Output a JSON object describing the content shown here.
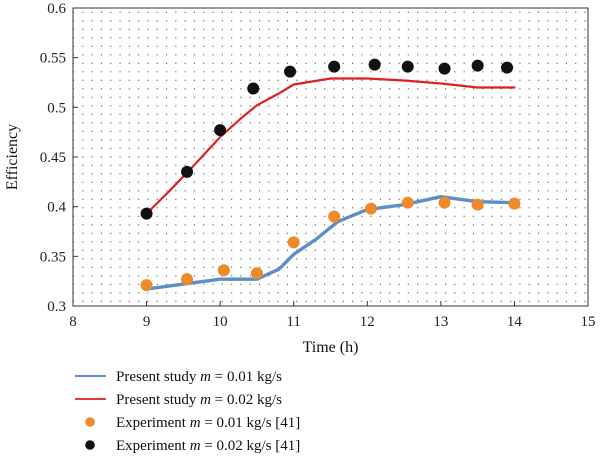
{
  "chart_data": {
    "type": "line",
    "title": "",
    "xlabel": "Time (h)",
    "ylabel": "Efficiency",
    "xlim": [
      8,
      15
    ],
    "ylim": [
      0.3,
      0.6
    ],
    "xticks": [
      "8",
      "9",
      "10",
      "11",
      "12",
      "13",
      "14",
      "15"
    ],
    "yticks": [
      "0.3",
      "0.35",
      "0.4",
      "0.45",
      "0.5",
      "0.55",
      "0.6"
    ],
    "grid": "dotted",
    "legend_position": "below",
    "series": [
      {
        "kind": "line",
        "legend_prefix": "Present study ",
        "legend_var": "m",
        "legend_suffix": " = 0.01 kg/s",
        "color": "#5b8fc7",
        "x": [
          9.0,
          9.5,
          10.0,
          10.5,
          10.8,
          11.0,
          11.3,
          11.6,
          12.0,
          12.5,
          13.0,
          13.5,
          14.0
        ],
        "y": [
          0.317,
          0.322,
          0.327,
          0.327,
          0.337,
          0.352,
          0.367,
          0.385,
          0.397,
          0.402,
          0.41,
          0.405,
          0.404
        ]
      },
      {
        "kind": "line",
        "legend_prefix": "Present study ",
        "legend_var": "m",
        "legend_suffix": " = 0.02 kg/s",
        "color": "#e02020",
        "x": [
          9.0,
          9.3,
          9.6,
          10.0,
          10.3,
          10.5,
          10.8,
          11.0,
          11.5,
          12.0,
          12.5,
          13.0,
          13.5,
          14.0
        ],
        "y": [
          0.393,
          0.415,
          0.438,
          0.47,
          0.49,
          0.502,
          0.514,
          0.523,
          0.529,
          0.529,
          0.527,
          0.524,
          0.52,
          0.52
        ]
      },
      {
        "kind": "scatter",
        "legend_prefix": "Experiment ",
        "legend_var": "m",
        "legend_suffix": " = 0.01 kg/s [41]",
        "color": "#ee8a2a",
        "x": [
          9.0,
          9.55,
          10.05,
          10.5,
          11.0,
          11.55,
          12.05,
          12.55,
          13.05,
          13.5,
          14.0
        ],
        "y": [
          0.321,
          0.327,
          0.336,
          0.333,
          0.364,
          0.39,
          0.398,
          0.404,
          0.404,
          0.402,
          0.403
        ]
      },
      {
        "kind": "scatter",
        "legend_prefix": "Experiment ",
        "legend_var": "m",
        "legend_suffix": " = 0.02 kg/s [41]",
        "color": "#111111",
        "x": [
          9.0,
          9.55,
          10.0,
          10.45,
          10.95,
          11.55,
          12.1,
          12.55,
          13.05,
          13.5,
          13.9
        ],
        "y": [
          0.393,
          0.435,
          0.477,
          0.519,
          0.536,
          0.541,
          0.543,
          0.541,
          0.539,
          0.542,
          0.54
        ]
      }
    ]
  }
}
